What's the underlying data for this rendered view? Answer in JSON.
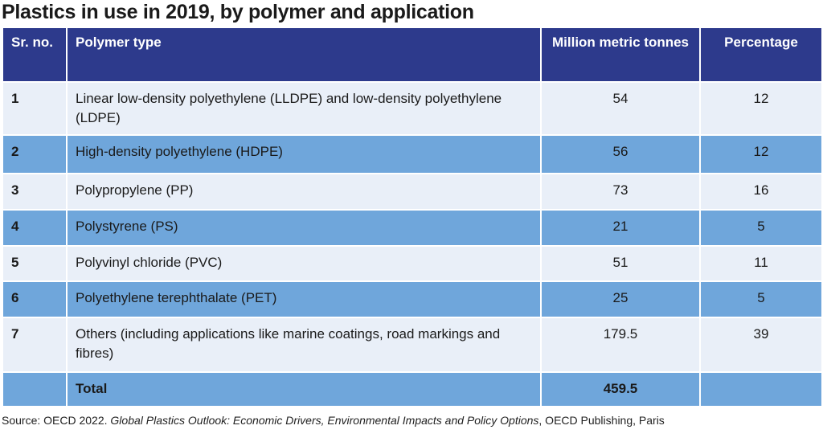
{
  "chart_data": {
    "type": "table",
    "title": "Plastics in use in 2019, by polymer and application",
    "columns": [
      "Sr. no.",
      "Polymer type",
      "Million metric tonnes",
      "Percentage"
    ],
    "rows": [
      [
        "1",
        "Linear low-density polyethylene (LLDPE) and low-density polyethylene (LDPE)",
        "54",
        "12"
      ],
      [
        "2",
        "High-density polyethylene (HDPE)",
        "56",
        "12"
      ],
      [
        "3",
        "Polypropylene (PP)",
        "73",
        "16"
      ],
      [
        "4",
        "Polystyrene (PS)",
        "21",
        "5"
      ],
      [
        "5",
        "Polyvinyl chloride (PVC)",
        "51",
        "11"
      ],
      [
        "6",
        "Polyethylene terephthalate (PET)",
        "25",
        "5"
      ],
      [
        "7",
        "Others (including applications like marine coatings, road markings and fibres)",
        "179.5",
        "39"
      ]
    ],
    "total": {
      "label": "Total",
      "value": "459.5"
    },
    "colors": {
      "header": "#2d3a8c",
      "row_light": "#e9eff8",
      "row_blue": "#6fa6db"
    }
  },
  "source": {
    "prefix": "Source: OECD 2022. ",
    "title": "Global Plastics Outlook: Economic Drivers, Environmental Impacts and Policy Options",
    "suffix": ", OECD Publishing, Paris"
  }
}
